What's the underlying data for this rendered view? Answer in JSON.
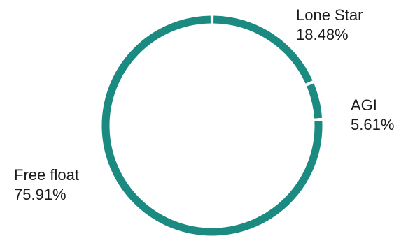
{
  "chart_data": {
    "type": "pie",
    "variant": "donut",
    "title": "",
    "color": "#1b8a80",
    "gap_color": "#ffffff",
    "start": "top",
    "direction": "clockwise",
    "legend": "none",
    "slices": [
      {
        "label": "Lone Star",
        "value": 18.48,
        "value_label": "18.48%"
      },
      {
        "label": "AGI",
        "value": 5.61,
        "value_label": "5.61%"
      },
      {
        "label": "Free float",
        "value": 75.91,
        "value_label": "75.91%"
      }
    ]
  }
}
